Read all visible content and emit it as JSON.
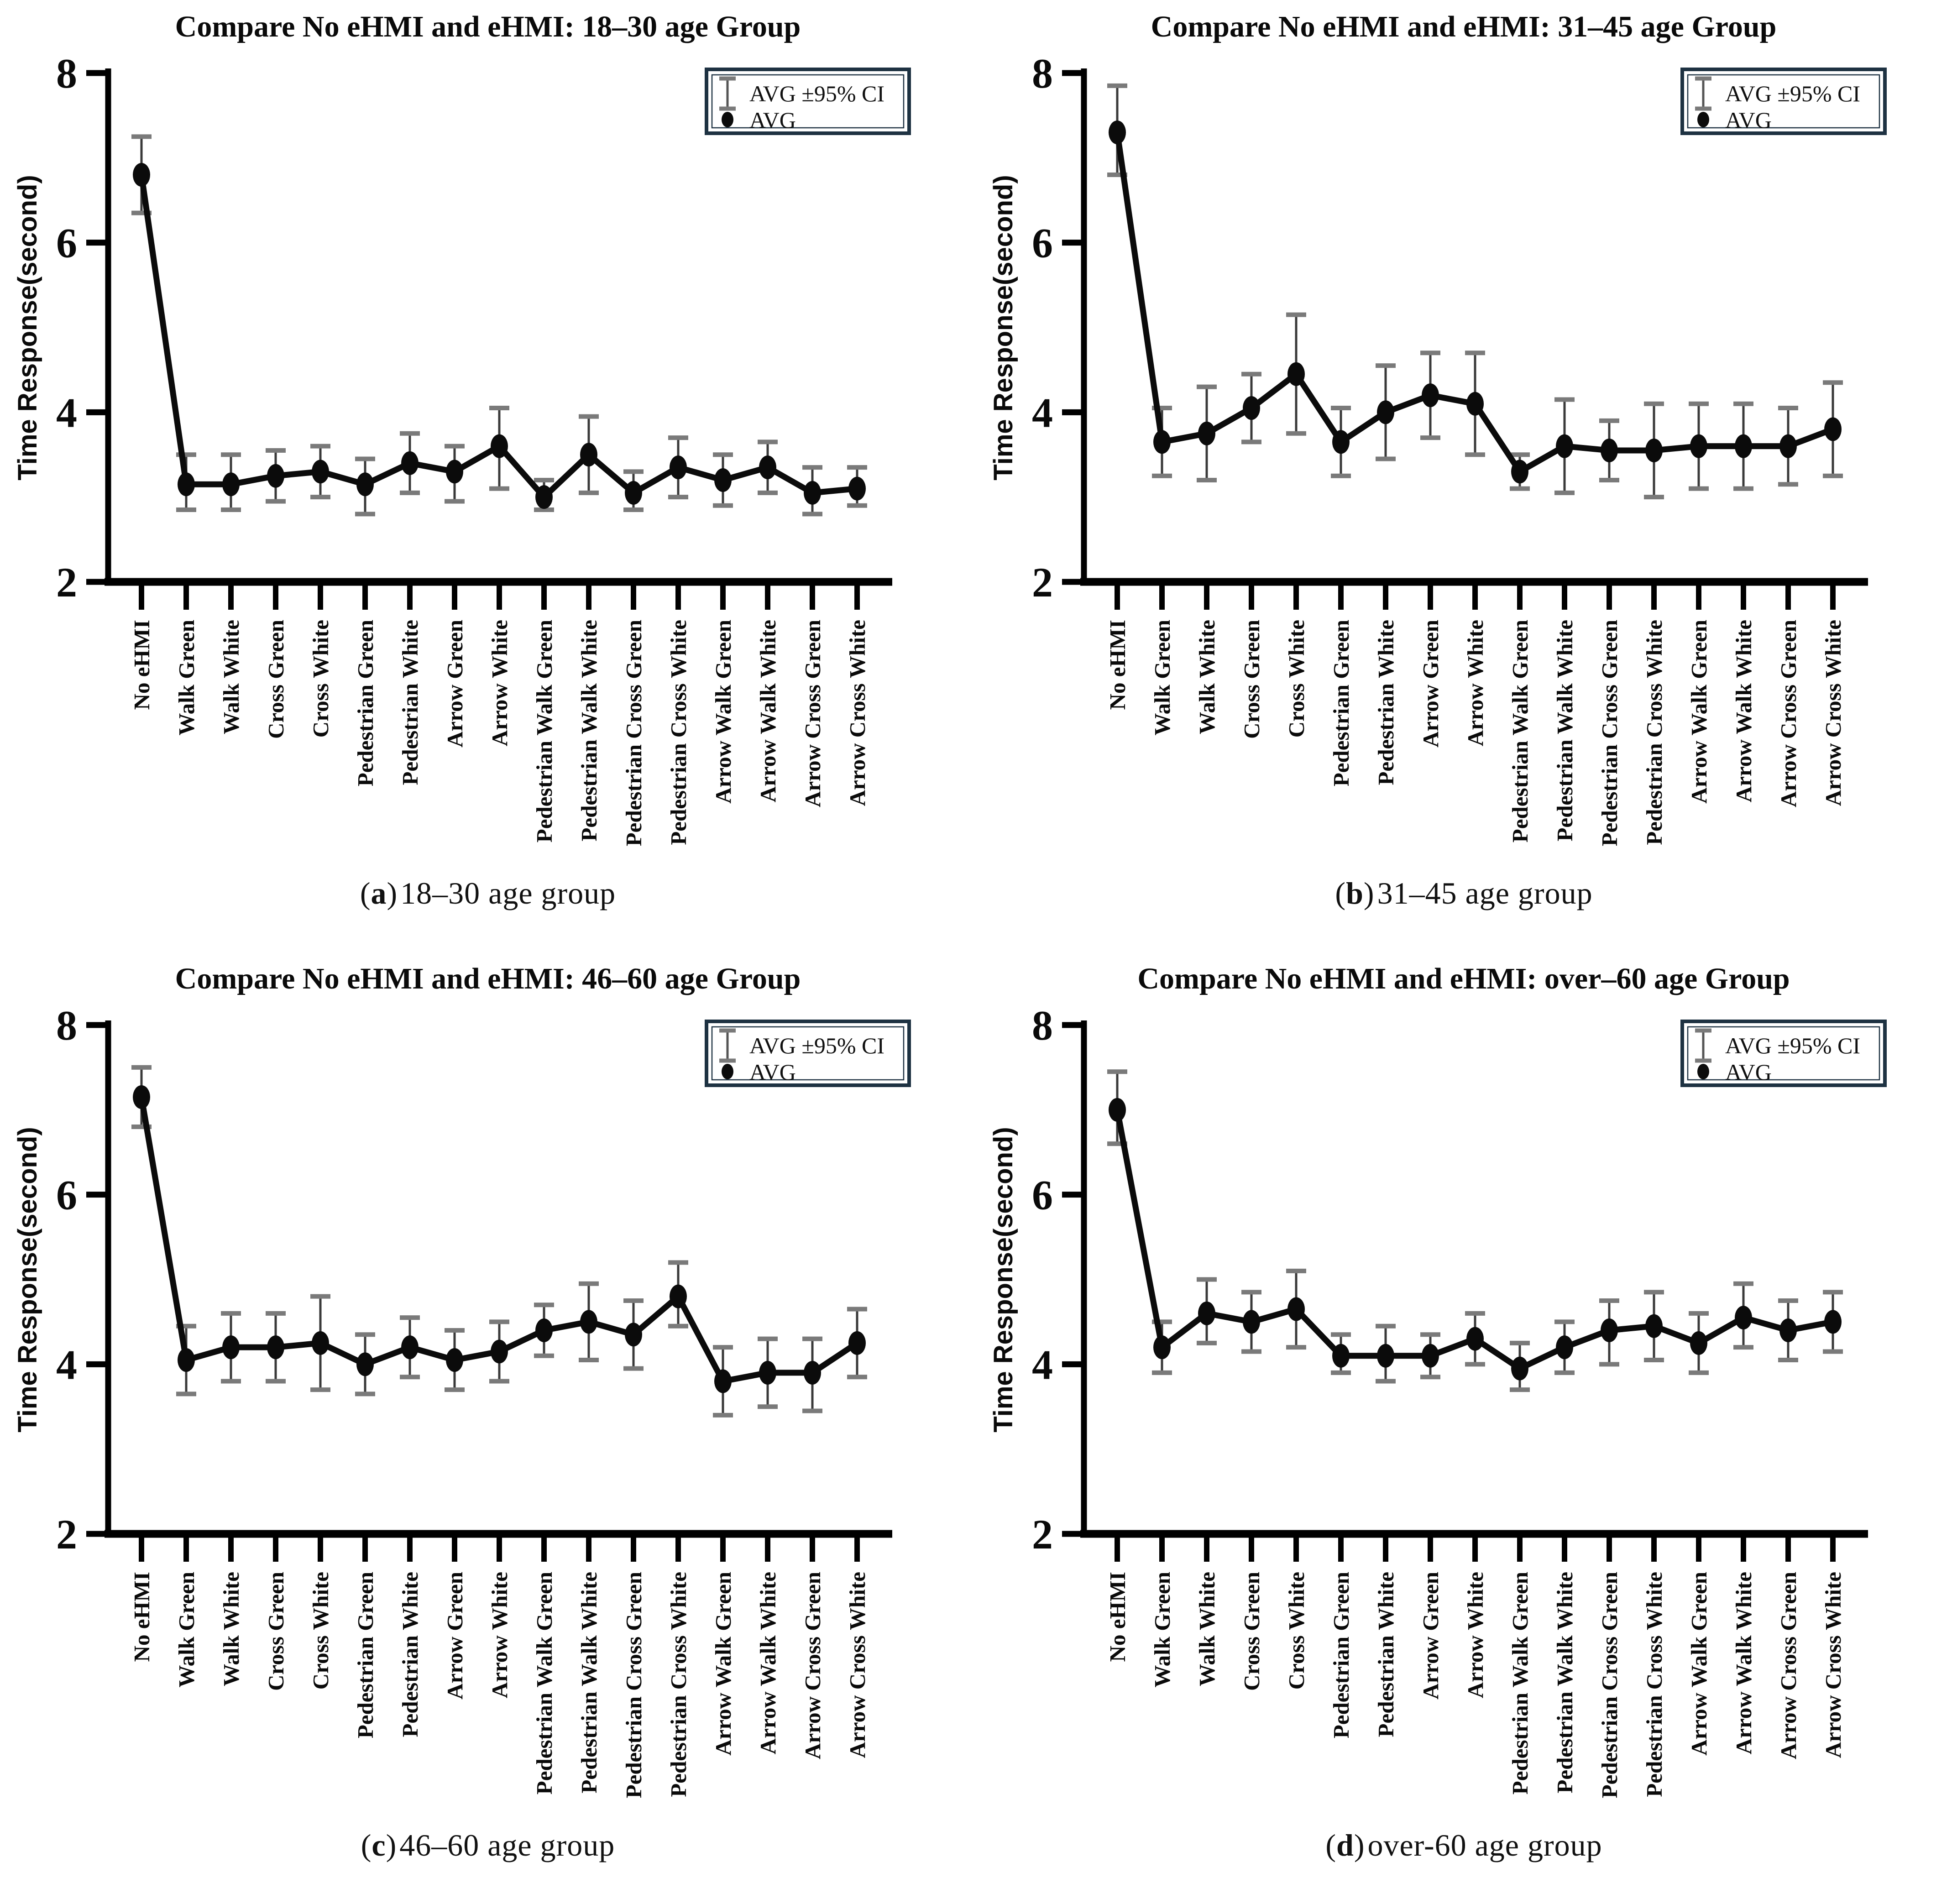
{
  "figure": {
    "caption_open": "(",
    "caption_close": ")",
    "y_axis_label": "Time Response(second)",
    "legend": {
      "ci_label": "AVG ±95% CI",
      "avg_label": "AVG"
    },
    "colors": {
      "line": "#0b0b0b",
      "point": "#0b0b0b",
      "error_cap": "#7a7a7a",
      "error_stem": "#3a3a3a",
      "legend_border": "#1e3242",
      "axis": "#000000",
      "background": "#ffffff"
    }
  },
  "chart_data": [
    {
      "type": "line",
      "title": "Compare No eHMI and eHMI: 18–30 age Group",
      "caption_letter": "a",
      "caption_rest": "18–30 age group",
      "ylabel": "Time Response(second)",
      "xlabel": "",
      "ylim": [
        2,
        8
      ],
      "yticks": [
        8,
        6,
        4,
        2
      ],
      "grid": false,
      "legend_position": "top-right",
      "legend": [
        "AVG ±95% CI",
        "AVG"
      ],
      "categories": [
        "No eHMI",
        "Walk Green",
        "Walk White",
        "Cross Green",
        "Cross White",
        "Pedestrian Green",
        "Pedestrian White",
        "Arrow Green",
        "Arrow White",
        "Pedestrian Walk Green",
        "Pedestrian Walk White",
        "Pedestrian Cross Green",
        "Pedestrian Cross White",
        "Arrow Walk Green",
        "Arrow Walk White",
        "Arrow Cross Green",
        "Arrow Cross White"
      ],
      "series": [
        {
          "name": "AVG",
          "values": [
            6.8,
            3.15,
            3.15,
            3.25,
            3.3,
            3.15,
            3.4,
            3.3,
            3.6,
            3.0,
            3.5,
            3.05,
            3.35,
            3.2,
            3.35,
            3.05,
            3.1
          ],
          "ci_upper": [
            7.25,
            3.5,
            3.5,
            3.55,
            3.6,
            3.45,
            3.75,
            3.6,
            4.05,
            3.2,
            3.95,
            3.3,
            3.7,
            3.5,
            3.65,
            3.35,
            3.35
          ],
          "ci_lower": [
            6.35,
            2.85,
            2.85,
            2.95,
            3.0,
            2.8,
            3.05,
            2.95,
            3.1,
            2.85,
            3.05,
            2.85,
            3.0,
            2.9,
            3.05,
            2.8,
            2.9
          ]
        }
      ]
    },
    {
      "type": "line",
      "title": "Compare No eHMI and eHMI: 31–45 age Group",
      "caption_letter": "b",
      "caption_rest": "31–45 age group",
      "ylabel": "Time Response(second)",
      "xlabel": "",
      "ylim": [
        2,
        8
      ],
      "yticks": [
        8,
        6,
        4,
        2
      ],
      "grid": false,
      "legend_position": "top-right",
      "legend": [
        "AVG ±95% CI",
        "AVG"
      ],
      "categories": [
        "No eHMI",
        "Walk Green",
        "Walk White",
        "Cross Green",
        "Cross White",
        "Pedestrian Green",
        "Pedestrian White",
        "Arrow Green",
        "Arrow White",
        "Pedestrian Walk Green",
        "Pedestrian Walk White",
        "Pedestrian Cross Green",
        "Pedestrian Cross White",
        "Arrow Walk Green",
        "Arrow Walk White",
        "Arrow Cross Green",
        "Arrow Cross White"
      ],
      "series": [
        {
          "name": "AVG",
          "values": [
            7.3,
            3.65,
            3.75,
            4.05,
            4.45,
            3.65,
            4.0,
            4.2,
            4.1,
            3.3,
            3.6,
            3.55,
            3.55,
            3.6,
            3.6,
            3.6,
            3.8
          ],
          "ci_upper": [
            7.85,
            4.05,
            4.3,
            4.45,
            5.15,
            4.05,
            4.55,
            4.7,
            4.7,
            3.5,
            4.15,
            3.9,
            4.1,
            4.1,
            4.1,
            4.05,
            4.35
          ],
          "ci_lower": [
            6.8,
            3.25,
            3.2,
            3.65,
            3.75,
            3.25,
            3.45,
            3.7,
            3.5,
            3.1,
            3.05,
            3.2,
            3.0,
            3.1,
            3.1,
            3.15,
            3.25
          ]
        }
      ]
    },
    {
      "type": "line",
      "title": "Compare No eHMI and eHMI: 46–60 age Group",
      "caption_letter": "c",
      "caption_rest": "46–60 age group",
      "ylabel": "Time Response(second)",
      "xlabel": "",
      "ylim": [
        2,
        8
      ],
      "yticks": [
        8,
        6,
        4,
        2
      ],
      "grid": false,
      "legend_position": "top-right",
      "legend": [
        "AVG ±95% CI",
        "AVG"
      ],
      "categories": [
        "No eHMI",
        "Walk Green",
        "Walk White",
        "Cross Green",
        "Cross White",
        "Pedestrian Green",
        "Pedestrian White",
        "Arrow Green",
        "Arrow White",
        "Pedestrian Walk Green",
        "Pedestrian Walk White",
        "Pedestrian Cross Green",
        "Pedestrian Cross White",
        "Arrow Walk Green",
        "Arrow Walk White",
        "Arrow Cross Green",
        "Arrow Cross White"
      ],
      "series": [
        {
          "name": "AVG",
          "values": [
            7.15,
            4.05,
            4.2,
            4.2,
            4.25,
            4.0,
            4.2,
            4.05,
            4.15,
            4.4,
            4.5,
            4.35,
            4.8,
            3.8,
            3.9,
            3.9,
            4.25
          ],
          "ci_upper": [
            7.5,
            4.45,
            4.6,
            4.6,
            4.8,
            4.35,
            4.55,
            4.4,
            4.5,
            4.7,
            4.95,
            4.75,
            5.2,
            4.2,
            4.3,
            4.3,
            4.65
          ],
          "ci_lower": [
            6.8,
            3.65,
            3.8,
            3.8,
            3.7,
            3.65,
            3.85,
            3.7,
            3.8,
            4.1,
            4.05,
            3.95,
            4.45,
            3.4,
            3.5,
            3.45,
            3.85
          ]
        }
      ]
    },
    {
      "type": "line",
      "title": "Compare No eHMI and eHMI: over–60 age Group",
      "caption_letter": "d",
      "caption_rest": "over-60 age group",
      "ylabel": "Time Response(second)",
      "xlabel": "",
      "ylim": [
        2,
        8
      ],
      "yticks": [
        8,
        6,
        4,
        2
      ],
      "grid": false,
      "legend_position": "top-right",
      "legend": [
        "AVG ±95% CI",
        "AVG"
      ],
      "categories": [
        "No eHMI",
        "Walk Green",
        "Walk White",
        "Cross Green",
        "Cross White",
        "Pedestrian Green",
        "Pedestrian White",
        "Arrow Green",
        "Arrow White",
        "Pedestrian Walk Green",
        "Pedestrian Walk White",
        "Pedestrian Cross Green",
        "Pedestrian Cross White",
        "Arrow Walk Green",
        "Arrow Walk White",
        "Arrow Cross Green",
        "Arrow Cross White"
      ],
      "series": [
        {
          "name": "AVG",
          "values": [
            7.0,
            4.2,
            4.6,
            4.5,
            4.65,
            4.1,
            4.1,
            4.1,
            4.3,
            3.95,
            4.2,
            4.4,
            4.45,
            4.25,
            4.55,
            4.4,
            4.5
          ],
          "ci_upper": [
            7.45,
            4.5,
            5.0,
            4.85,
            5.1,
            4.35,
            4.45,
            4.35,
            4.6,
            4.25,
            4.5,
            4.75,
            4.85,
            4.6,
            4.95,
            4.75,
            4.85
          ],
          "ci_lower": [
            6.6,
            3.9,
            4.25,
            4.15,
            4.2,
            3.9,
            3.8,
            3.85,
            4.0,
            3.7,
            3.9,
            4.0,
            4.05,
            3.9,
            4.2,
            4.05,
            4.15
          ]
        }
      ]
    }
  ]
}
